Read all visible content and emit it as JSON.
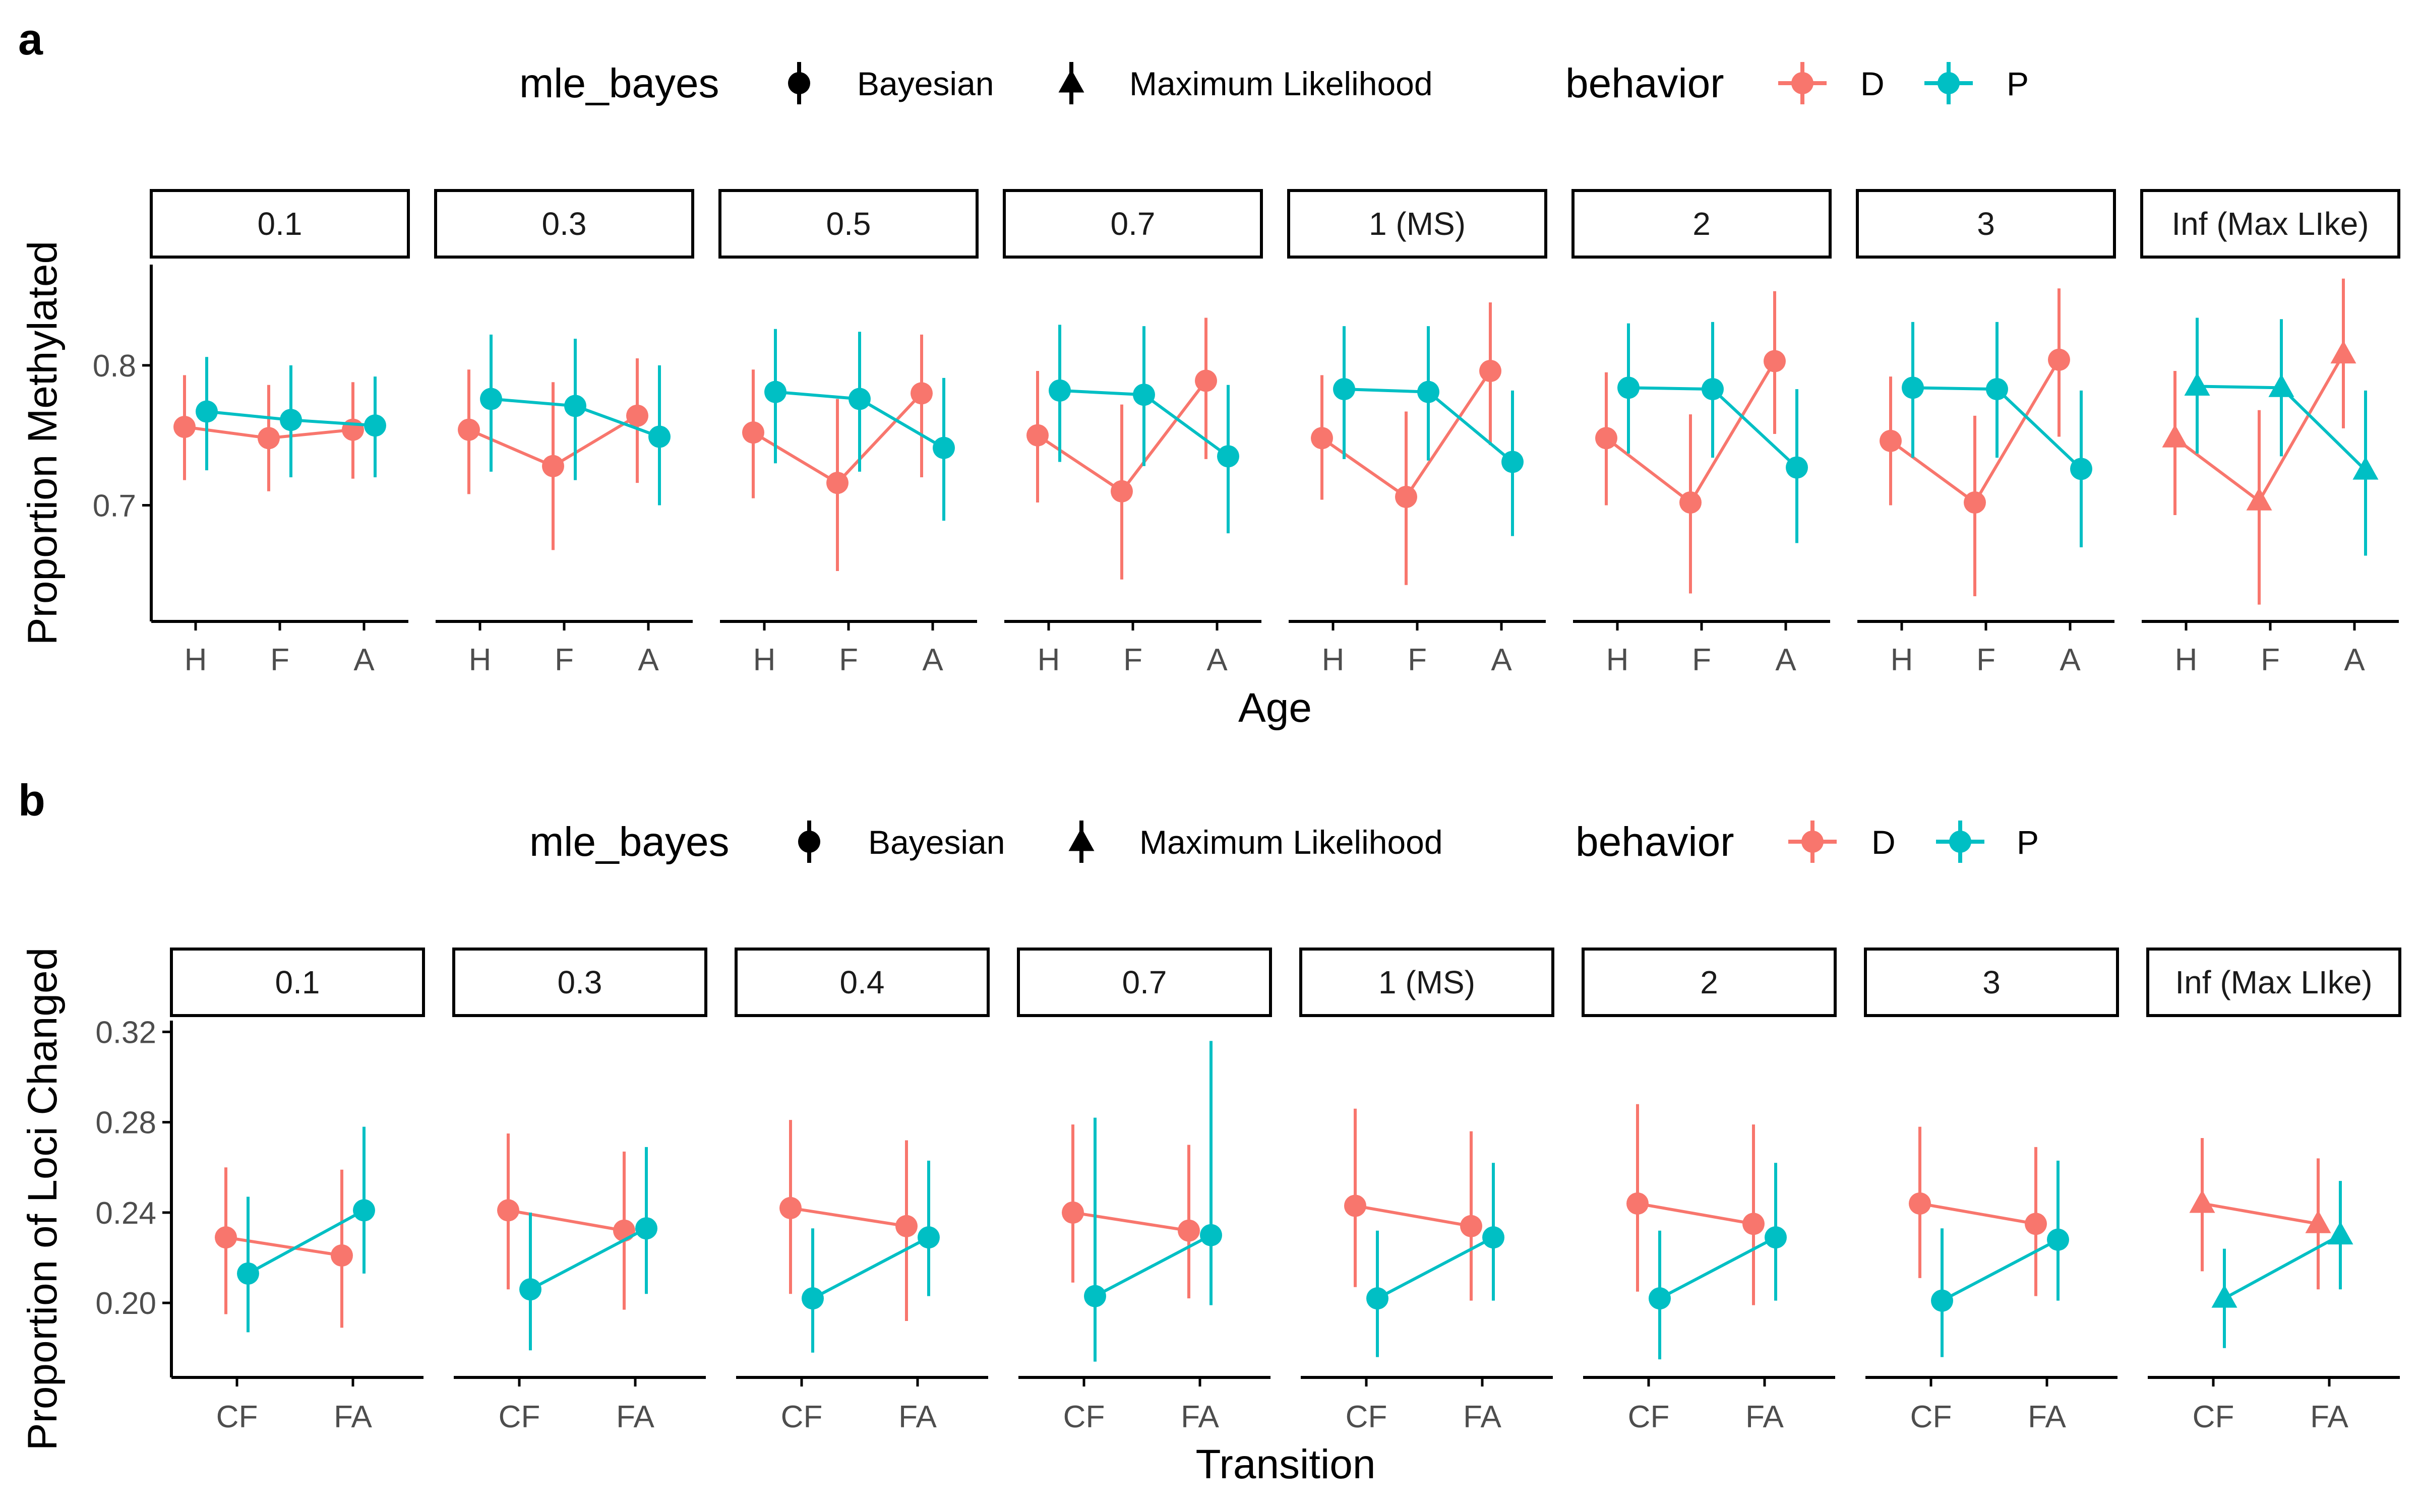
{
  "colors": {
    "D": "#F8766D",
    "P": "#00BFC4",
    "axis": "#000000",
    "tick_label": "#4D4D4D"
  },
  "icons": {
    "bayesian": "point-with-errorbar-icon",
    "mle": "triangle-with-errorbar-icon"
  },
  "charts": [
    {
      "panel_letter": "a",
      "legend": {
        "shape_title": "mle_bayes",
        "shape_labels": [
          "Bayesian",
          "Maximum Likelihood"
        ],
        "color_title": "behavior",
        "color_labels": [
          "D",
          "P"
        ]
      },
      "xlabel": "Age",
      "ylabel": "Proportion Methylated",
      "yticks": [
        "0.7",
        "0.8"
      ],
      "xcats": [
        "H",
        "F",
        "A"
      ],
      "facets": [
        "0.1",
        "0.3",
        "0.5",
        "0.7",
        "1 (MS)",
        "2",
        "3",
        "Inf (Max LIke)"
      ]
    },
    {
      "panel_letter": "b",
      "legend": {
        "shape_title": "mle_bayes",
        "shape_labels": [
          "Bayesian",
          "Maximum Likelihood"
        ],
        "color_title": "behavior",
        "color_labels": [
          "D",
          "P"
        ]
      },
      "xlabel": "Transition",
      "ylabel": "Proportion of Loci Changed",
      "yticks": [
        "0.20",
        "0.24",
        "0.28",
        "0.32"
      ],
      "xcats": [
        "CF",
        "FA"
      ],
      "facets": [
        "0.1",
        "0.3",
        "0.4",
        "0.7",
        "1 (MS)",
        "2",
        "3",
        "Inf (Max LIke)"
      ]
    }
  ],
  "chart_data": [
    {
      "type": "scatter",
      "title": "a",
      "xlabel": "Age",
      "ylabel": "Proportion Methylated",
      "categories": [
        "H",
        "F",
        "A"
      ],
      "ylim": [
        0.617,
        0.872
      ],
      "yticks": [
        0.7,
        0.8
      ],
      "grid": false,
      "legend_position": "top",
      "facets": [
        {
          "label": "0.1",
          "mle_bayes": "Bayesian",
          "series": [
            {
              "name": "D",
              "values": [
                0.756,
                0.748,
                0.754
              ],
              "lower": [
                0.718,
                0.71,
                0.719
              ],
              "upper": [
                0.793,
                0.786,
                0.788
              ]
            },
            {
              "name": "P",
              "values": [
                0.767,
                0.761,
                0.757
              ],
              "lower": [
                0.725,
                0.72,
                0.72
              ],
              "upper": [
                0.806,
                0.8,
                0.792
              ]
            }
          ]
        },
        {
          "label": "0.3",
          "mle_bayes": "Bayesian",
          "series": [
            {
              "name": "D",
              "values": [
                0.754,
                0.728,
                0.764
              ],
              "lower": [
                0.708,
                0.668,
                0.716
              ],
              "upper": [
                0.797,
                0.788,
                0.805
              ]
            },
            {
              "name": "P",
              "values": [
                0.776,
                0.771,
                0.749
              ],
              "lower": [
                0.724,
                0.718,
                0.7
              ],
              "upper": [
                0.822,
                0.819,
                0.8
              ]
            }
          ]
        },
        {
          "label": "0.5",
          "mle_bayes": "Bayesian",
          "series": [
            {
              "name": "D",
              "values": [
                0.752,
                0.716,
                0.78
              ],
              "lower": [
                0.705,
                0.653,
                0.72
              ],
              "upper": [
                0.797,
                0.776,
                0.822
              ]
            },
            {
              "name": "P",
              "values": [
                0.781,
                0.776,
                0.741
              ],
              "lower": [
                0.73,
                0.724,
                0.689
              ],
              "upper": [
                0.826,
                0.824,
                0.791
              ]
            }
          ]
        },
        {
          "label": "0.7",
          "mle_bayes": "Bayesian",
          "series": [
            {
              "name": "D",
              "values": [
                0.75,
                0.71,
                0.789
              ],
              "lower": [
                0.702,
                0.647,
                0.733
              ],
              "upper": [
                0.796,
                0.772,
                0.834
              ]
            },
            {
              "name": "P",
              "values": [
                0.782,
                0.779,
                0.735
              ],
              "lower": [
                0.731,
                0.728,
                0.68
              ],
              "upper": [
                0.829,
                0.828,
                0.786
              ]
            }
          ]
        },
        {
          "label": "1 (MS)",
          "mle_bayes": "Bayesian",
          "series": [
            {
              "name": "D",
              "values": [
                0.748,
                0.706,
                0.796
              ],
              "lower": [
                0.704,
                0.643,
                0.743
              ],
              "upper": [
                0.793,
                0.767,
                0.845
              ]
            },
            {
              "name": "P",
              "values": [
                0.783,
                0.781,
                0.731
              ],
              "lower": [
                0.733,
                0.732,
                0.678
              ],
              "upper": [
                0.828,
                0.828,
                0.782
              ]
            }
          ]
        },
        {
          "label": "2",
          "mle_bayes": "Bayesian",
          "series": [
            {
              "name": "D",
              "values": [
                0.748,
                0.702,
                0.803
              ],
              "lower": [
                0.7,
                0.637,
                0.751
              ],
              "upper": [
                0.795,
                0.765,
                0.853
              ]
            },
            {
              "name": "P",
              "values": [
                0.784,
                0.783,
                0.727
              ],
              "lower": [
                0.737,
                0.734,
                0.673
              ],
              "upper": [
                0.83,
                0.831,
                0.783
              ]
            }
          ]
        },
        {
          "label": "3",
          "mle_bayes": "Bayesian",
          "series": [
            {
              "name": "D",
              "values": [
                0.746,
                0.702,
                0.804
              ],
              "lower": [
                0.7,
                0.635,
                0.749
              ],
              "upper": [
                0.792,
                0.764,
                0.855
              ]
            },
            {
              "name": "P",
              "values": [
                0.784,
                0.783,
                0.726
              ],
              "lower": [
                0.734,
                0.734,
                0.67
              ],
              "upper": [
                0.831,
                0.831,
                0.782
              ]
            }
          ]
        },
        {
          "label": "Inf (Max LIke)",
          "mle_bayes": "Maximum Likelihood",
          "series": [
            {
              "name": "D",
              "values": [
                0.748,
                0.703,
                0.808
              ],
              "lower": [
                0.693,
                0.629,
                0.755
              ],
              "upper": [
                0.796,
                0.768,
                0.862
              ]
            },
            {
              "name": "P",
              "values": [
                0.785,
                0.784,
                0.725
              ],
              "lower": [
                0.737,
                0.735,
                0.664
              ],
              "upper": [
                0.834,
                0.833,
                0.782
              ]
            }
          ]
        }
      ]
    },
    {
      "type": "scatter",
      "title": "b",
      "xlabel": "Transition",
      "ylabel": "Proportion of Loci Changed",
      "categories": [
        "CF",
        "FA"
      ],
      "ylim": [
        0.167,
        0.325
      ],
      "yticks": [
        0.2,
        0.24,
        0.28,
        0.32
      ],
      "grid": false,
      "legend_position": "top",
      "facets": [
        {
          "label": "0.1",
          "mle_bayes": "Bayesian",
          "series": [
            {
              "name": "D",
              "values": [
                0.229,
                0.221
              ],
              "lower": [
                0.195,
                0.189
              ],
              "upper": [
                0.26,
                0.259
              ]
            },
            {
              "name": "P",
              "values": [
                0.213,
                0.241
              ],
              "lower": [
                0.187,
                0.213
              ],
              "upper": [
                0.247,
                0.278
              ]
            }
          ]
        },
        {
          "label": "0.3",
          "mle_bayes": "Bayesian",
          "series": [
            {
              "name": "D",
              "values": [
                0.241,
                0.232
              ],
              "lower": [
                0.206,
                0.197
              ],
              "upper": [
                0.275,
                0.267
              ]
            },
            {
              "name": "P",
              "values": [
                0.206,
                0.233
              ],
              "lower": [
                0.179,
                0.204
              ],
              "upper": [
                0.24,
                0.269
              ]
            }
          ]
        },
        {
          "label": "0.4",
          "mle_bayes": "Bayesian",
          "series": [
            {
              "name": "D",
              "values": [
                0.242,
                0.234
              ],
              "lower": [
                0.204,
                0.192
              ],
              "upper": [
                0.281,
                0.272
              ]
            },
            {
              "name": "P",
              "values": [
                0.202,
                0.229
              ],
              "lower": [
                0.178,
                0.203
              ],
              "upper": [
                0.233,
                0.263
              ]
            }
          ]
        },
        {
          "label": "0.7",
          "mle_bayes": "Bayesian",
          "series": [
            {
              "name": "D",
              "values": [
                0.24,
                0.232
              ],
              "lower": [
                0.209,
                0.202
              ],
              "upper": [
                0.279,
                0.27
              ]
            },
            {
              "name": "P",
              "values": [
                0.203,
                0.23
              ],
              "lower": [
                0.174,
                0.199
              ],
              "upper": [
                0.282,
                0.316
              ]
            }
          ]
        },
        {
          "label": "1 (MS)",
          "mle_bayes": "Bayesian",
          "series": [
            {
              "name": "D",
              "values": [
                0.243,
                0.234
              ],
              "lower": [
                0.207,
                0.201
              ],
              "upper": [
                0.286,
                0.276
              ]
            },
            {
              "name": "P",
              "values": [
                0.202,
                0.229
              ],
              "lower": [
                0.176,
                0.201
              ],
              "upper": [
                0.232,
                0.262
              ]
            }
          ]
        },
        {
          "label": "2",
          "mle_bayes": "Bayesian",
          "series": [
            {
              "name": "D",
              "values": [
                0.244,
                0.235
              ],
              "lower": [
                0.205,
                0.199
              ],
              "upper": [
                0.288,
                0.279
              ]
            },
            {
              "name": "P",
              "values": [
                0.202,
                0.229
              ],
              "lower": [
                0.175,
                0.201
              ],
              "upper": [
                0.232,
                0.262
              ]
            }
          ]
        },
        {
          "label": "3",
          "mle_bayes": "Bayesian",
          "series": [
            {
              "name": "D",
              "values": [
                0.244,
                0.235
              ],
              "lower": [
                0.211,
                0.203
              ],
              "upper": [
                0.278,
                0.269
              ]
            },
            {
              "name": "P",
              "values": [
                0.201,
                0.228
              ],
              "lower": [
                0.176,
                0.201
              ],
              "upper": [
                0.233,
                0.263
              ]
            }
          ]
        },
        {
          "label": "Inf (Max LIke)",
          "mle_bayes": "Maximum Likelihood",
          "series": [
            {
              "name": "D",
              "values": [
                0.244,
                0.235
              ],
              "lower": [
                0.214,
                0.206
              ],
              "upper": [
                0.273,
                0.264
              ]
            },
            {
              "name": "P",
              "values": [
                0.202,
                0.23
              ],
              "lower": [
                0.18,
                0.206
              ],
              "upper": [
                0.224,
                0.254
              ]
            }
          ]
        }
      ]
    }
  ]
}
